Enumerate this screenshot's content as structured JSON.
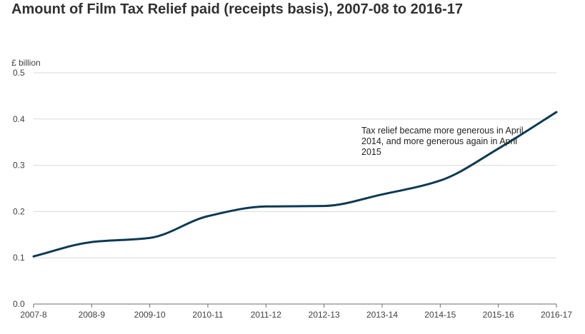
{
  "chart_data": {
    "type": "line",
    "title": "Amount of Film Tax Relief paid (receipts basis), 2007-08 to 2016-17",
    "ylabel": "£ billion",
    "xlabel": "",
    "categories": [
      "2007-8",
      "2008-9",
      "2009-10",
      "2010-11",
      "2011-12",
      "2012-13",
      "2013-14",
      "2014-15",
      "2015-16",
      "2016-17"
    ],
    "series": [
      {
        "values": [
          0.103,
          0.134,
          0.143,
          0.19,
          0.211,
          0.212,
          0.237,
          0.267,
          0.336,
          0.415
        ],
        "color": "#0b3a53"
      }
    ],
    "ylim": [
      0,
      0.5
    ],
    "yticks": [
      "0.0",
      "0.1",
      "0.2",
      "0.3",
      "0.4",
      "0.5"
    ],
    "grid": true,
    "annotation": "Tax relief became more generous in April 2014, and more generous again in April 2015"
  }
}
